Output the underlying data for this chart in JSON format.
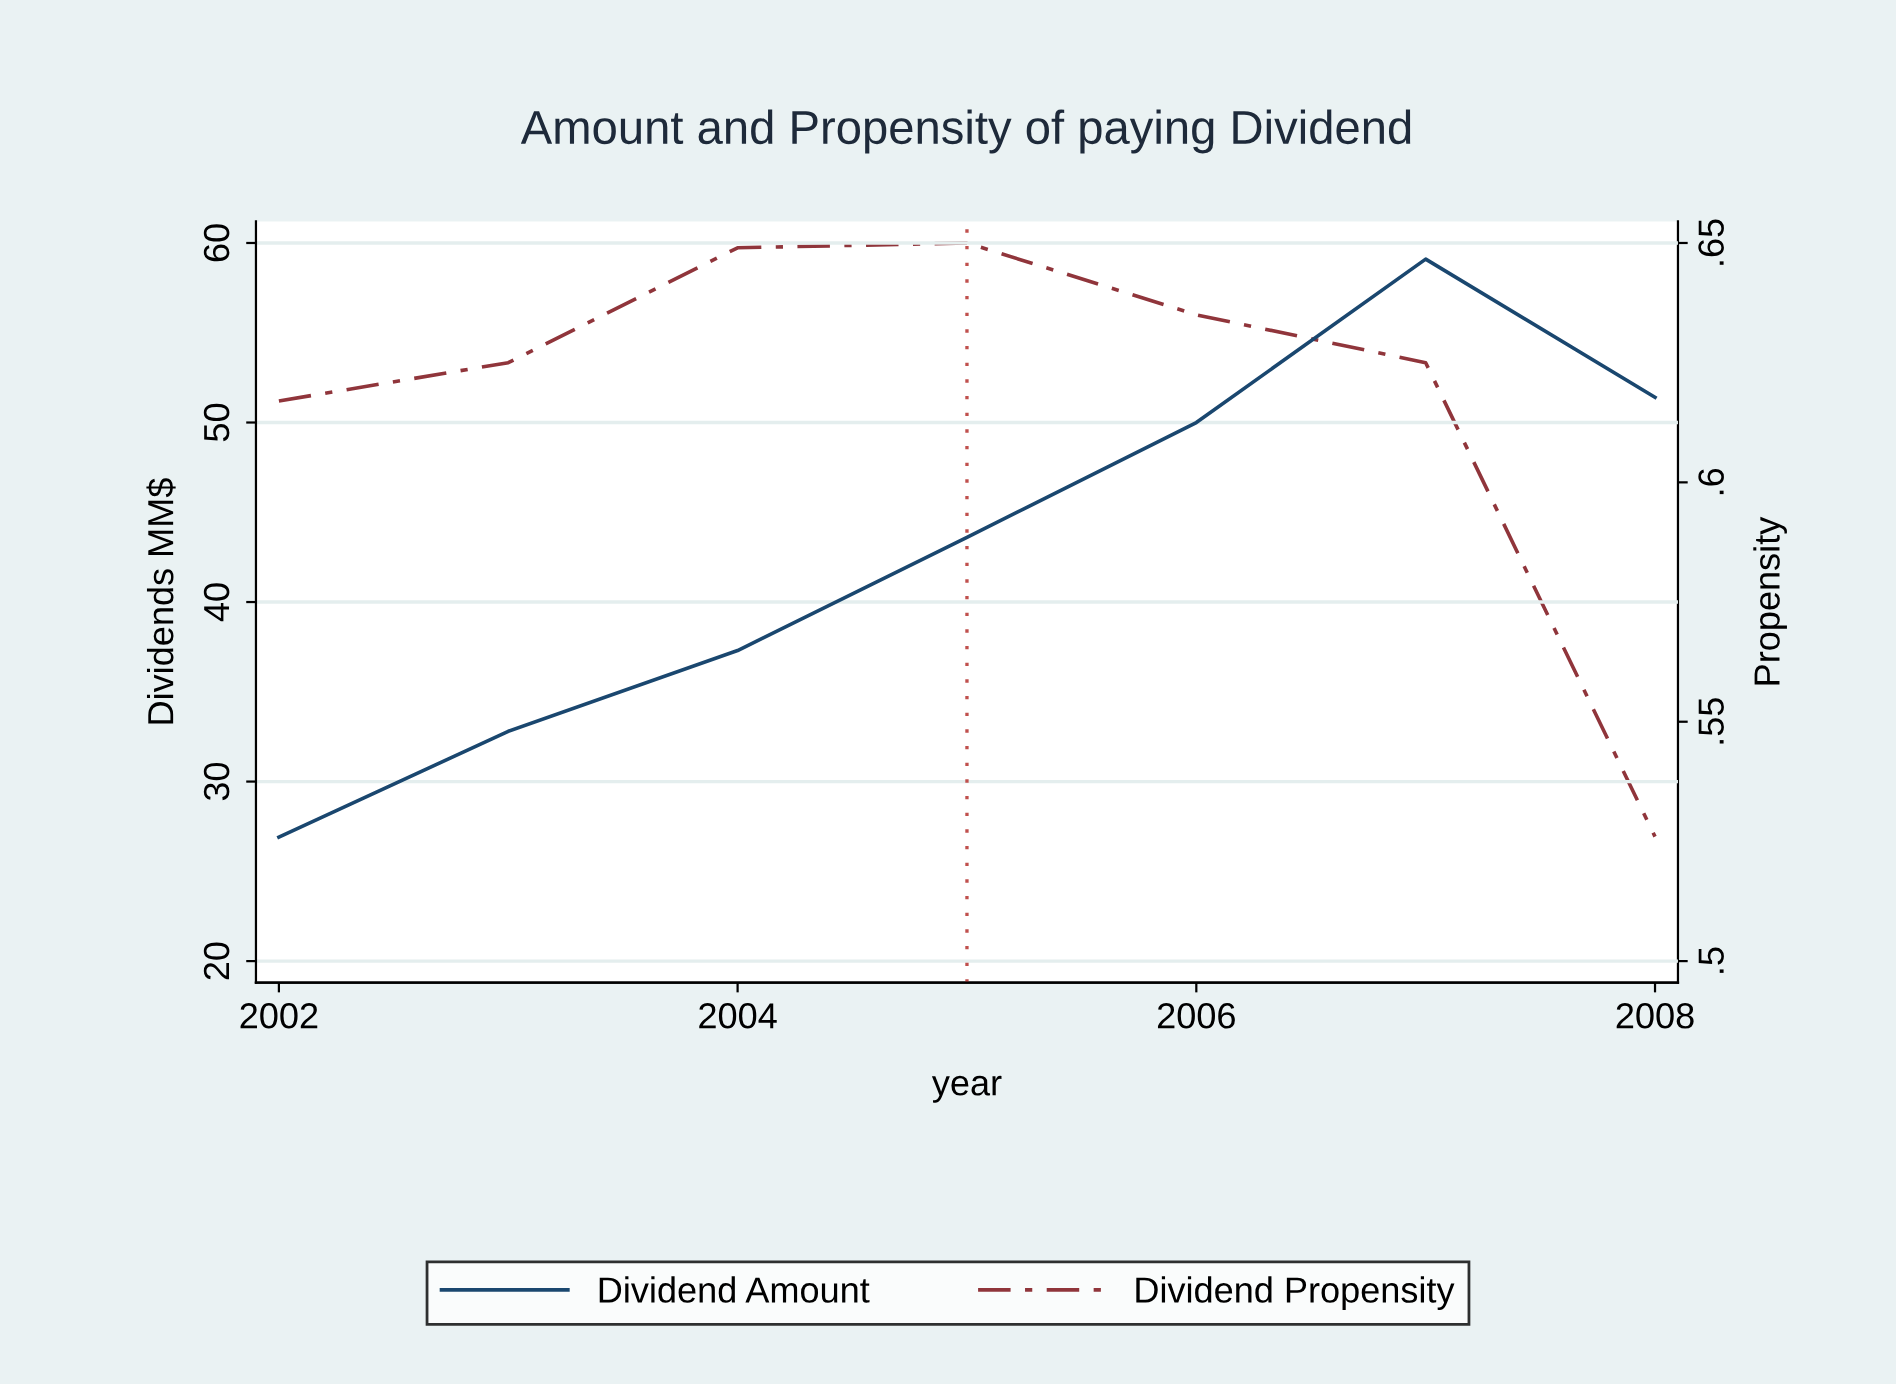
{
  "chart_data": {
    "type": "line",
    "title": "Amount and Propensity of paying Dividend",
    "xlabel": "year",
    "ylabel": "Dividends MM$",
    "y2label": "Propensity",
    "x": [
      2002,
      2003,
      2004,
      2005,
      2006,
      2007,
      2008
    ],
    "series": [
      {
        "name": "Dividend Amount",
        "color": "#1a476f",
        "line_style": "solid",
        "values": [
          26.9,
          32.8,
          37.3,
          43.6,
          50.0,
          59.1,
          51.4
        ]
      },
      {
        "name": "Dividend Propensity",
        "color": "#90353b",
        "line_style": "dashdot",
        "axis": "y2",
        "values": [
          0.617,
          0.625,
          0.649,
          0.65,
          0.635,
          0.625,
          0.526
        ]
      }
    ],
    "xlim": [
      2001.9,
      2008.1
    ],
    "xticks": [
      2002,
      2004,
      2006,
      2008
    ],
    "ylim": [
      18.8,
      61.2
    ],
    "yticks": [
      20,
      30,
      40,
      50,
      60
    ],
    "y2lim": [
      0.4955,
      0.6545
    ],
    "y2ticks": [
      {
        "value": 0.5,
        "label": ".5"
      },
      {
        "value": 0.55,
        "label": ".55"
      },
      {
        "value": 0.6,
        "label": ".6"
      },
      {
        "value": 0.65,
        "label": ".65"
      }
    ],
    "ref_lines": [
      {
        "axis": "x",
        "value": 2005,
        "color": "#c0504d",
        "line_style": "dotted"
      }
    ],
    "grid": "y",
    "legend": "bottom",
    "marker": "none"
  }
}
